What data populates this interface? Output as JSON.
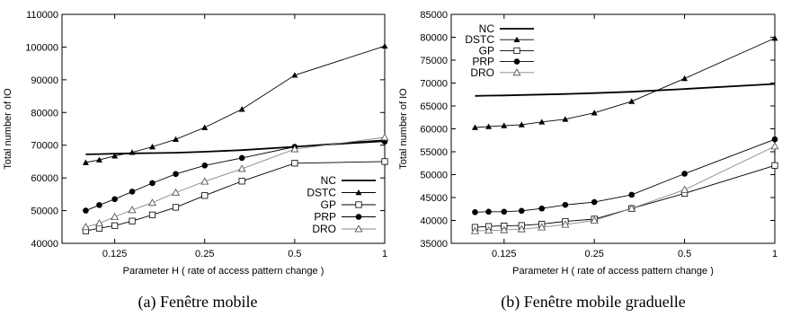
{
  "chart_data": [
    {
      "type": "line",
      "caption": "(a) Fenêtre mobile",
      "xlabel": "Parameter H ( rate of access pattern change )",
      "ylabel": "Total number of IO",
      "x_scale": "log2",
      "xlim": [
        0.0833,
        1.0
      ],
      "ylim": [
        40000,
        110000
      ],
      "x_ticks": [
        0.125,
        0.25,
        0.5,
        1
      ],
      "x_tick_labels": [
        "0.125",
        "0.25",
        "0.5",
        "1"
      ],
      "y_ticks": [
        40000,
        50000,
        60000,
        70000,
        80000,
        90000,
        100000,
        110000
      ],
      "legend_position": "bottom-right",
      "x": [
        0.1,
        0.111,
        0.125,
        0.143,
        0.167,
        0.2,
        0.25,
        0.333,
        0.5,
        1
      ],
      "series": [
        {
          "name": "NC",
          "marker": "none",
          "values": [
            67200,
            67300,
            67400,
            67500,
            67600,
            67700,
            68000,
            68500,
            69500,
            71500
          ]
        },
        {
          "name": "DSTC",
          "marker": "triangle-filled",
          "values": [
            64700,
            65500,
            66700,
            67800,
            69500,
            71800,
            75400,
            81000,
            91400,
            100300
          ]
        },
        {
          "name": "GP",
          "marker": "square-open",
          "values": [
            43800,
            44600,
            45400,
            46800,
            48700,
            51000,
            54600,
            59000,
            64500,
            65000
          ]
        },
        {
          "name": "PRP",
          "marker": "circle-filled",
          "values": [
            50000,
            51700,
            53500,
            55800,
            58400,
            61200,
            63800,
            66100,
            69500,
            71100
          ]
        },
        {
          "name": "DRO",
          "marker": "triangle-open",
          "values": [
            45000,
            46100,
            48100,
            50200,
            52400,
            55500,
            58900,
            62800,
            68800,
            72400
          ]
        }
      ]
    },
    {
      "type": "line",
      "caption": "(b) Fenêtre mobile graduelle",
      "xlabel": "Parameter H ( rate of access pattern change )",
      "ylabel": "Total number of IO",
      "x_scale": "log2",
      "xlim": [
        0.0833,
        1.0
      ],
      "ylim": [
        35000,
        85000
      ],
      "x_ticks": [
        0.125,
        0.25,
        0.5,
        1
      ],
      "x_tick_labels": [
        "0.125",
        "0.25",
        "0.5",
        "1"
      ],
      "y_ticks": [
        35000,
        40000,
        45000,
        50000,
        55000,
        60000,
        65000,
        70000,
        75000,
        80000,
        85000
      ],
      "legend_position": "top-left",
      "x": [
        0.1,
        0.111,
        0.125,
        0.143,
        0.167,
        0.2,
        0.25,
        0.333,
        0.5,
        1
      ],
      "series": [
        {
          "name": "NC",
          "marker": "none",
          "values": [
            67200,
            67250,
            67300,
            67400,
            67500,
            67600,
            67800,
            68100,
            68700,
            69800
          ]
        },
        {
          "name": "DSTC",
          "marker": "triangle-filled",
          "values": [
            60300,
            60500,
            60700,
            60900,
            61500,
            62100,
            63500,
            66000,
            71000,
            79800
          ]
        },
        {
          "name": "GP",
          "marker": "square-open",
          "values": [
            38500,
            38700,
            38800,
            38900,
            39200,
            39800,
            40300,
            42600,
            45900,
            52000
          ]
        },
        {
          "name": "PRP",
          "marker": "circle-filled",
          "values": [
            41800,
            41900,
            41900,
            42100,
            42600,
            43400,
            44000,
            45600,
            50200,
            57700
          ]
        },
        {
          "name": "DRO",
          "marker": "triangle-open",
          "values": [
            37700,
            37800,
            37900,
            38100,
            38500,
            39100,
            40000,
            42600,
            46700,
            56200
          ]
        }
      ]
    }
  ]
}
